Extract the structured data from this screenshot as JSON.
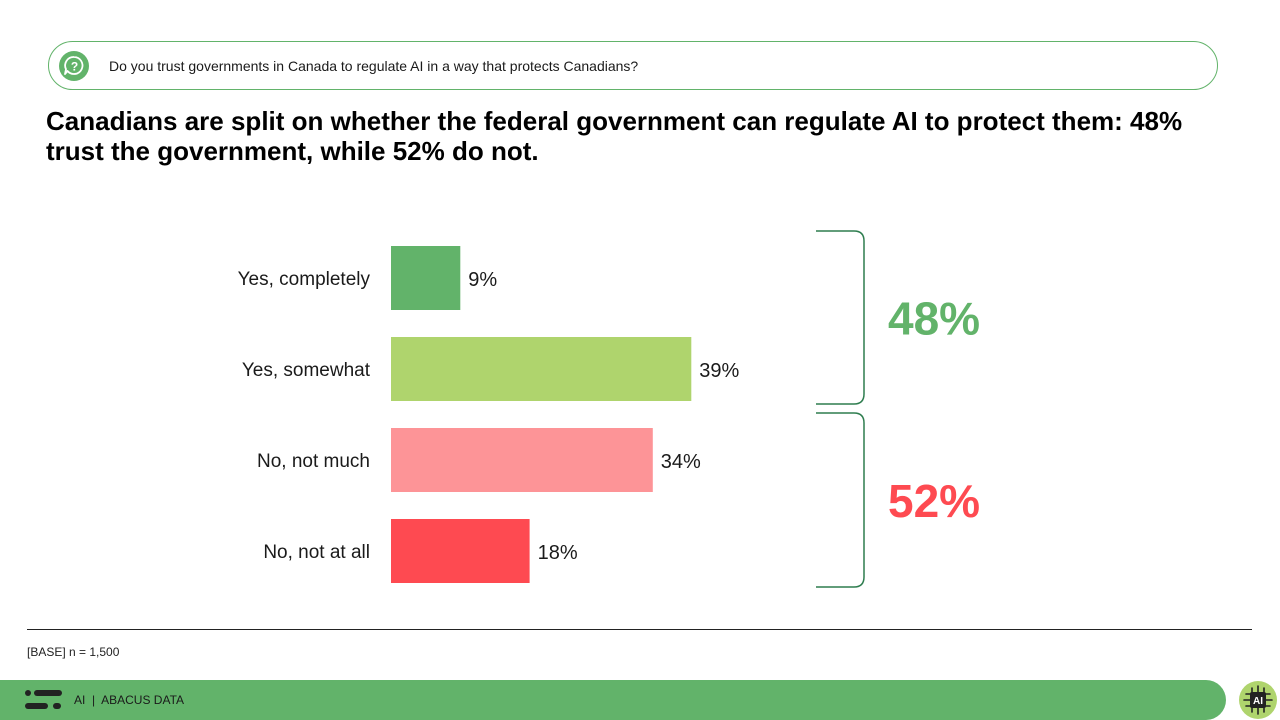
{
  "question": {
    "text": "Do you trust governments in Canada to regulate AI in a way that protects Canadians?",
    "icon": "question-chat-icon"
  },
  "headline": "Canadians are split on whether the federal government can regulate AI to protect them: 48% trust the government, while 52% do not.",
  "chart_data": {
    "type": "bar",
    "orientation": "horizontal",
    "categories": [
      "Yes, completely",
      "Yes, somewhat",
      "No, not much",
      "No, not at all"
    ],
    "values": [
      9,
      39,
      34,
      18
    ],
    "value_labels": [
      "9%",
      "39%",
      "34%",
      "18%"
    ],
    "bar_colors": [
      "#62b36a",
      "#afd46d",
      "#fd9497",
      "#fe4a51"
    ],
    "groups": [
      {
        "label": "48%",
        "categories": [
          "Yes, completely",
          "Yes, somewhat"
        ],
        "color": "#62b36a"
      },
      {
        "label": "52%",
        "categories": [
          "No, not much",
          "No, not at all"
        ],
        "color": "#fe4a51"
      }
    ],
    "grid": false,
    "legend": "none"
  },
  "base_note": "[BASE] n = 1,500",
  "footer": {
    "text": "AI  |  ABACUS DATA",
    "color": "#62b36a",
    "logo_icon": "abacus-logo-icon",
    "badge_icon": "ai-chip-badge-icon",
    "badge_text": "AI"
  }
}
